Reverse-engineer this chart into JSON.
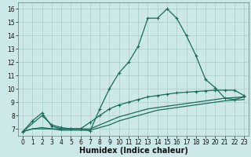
{
  "xlabel": "Humidex (Indice chaleur)",
  "background_color": "#cce8e8",
  "grid_color": "#aacccc",
  "line_color": "#1a6b5e",
  "xlim": [
    -0.5,
    23.5
  ],
  "ylim": [
    6.5,
    16.5
  ],
  "xticks": [
    0,
    1,
    2,
    3,
    4,
    5,
    6,
    7,
    8,
    9,
    10,
    11,
    12,
    13,
    14,
    15,
    16,
    17,
    18,
    19,
    20,
    21,
    22,
    23
  ],
  "yticks": [
    7,
    8,
    9,
    10,
    11,
    12,
    13,
    14,
    15,
    16
  ],
  "line1_x": [
    0,
    1,
    2,
    3,
    4,
    5,
    6,
    7,
    8,
    9,
    10,
    11,
    12,
    13,
    14,
    15,
    16,
    17,
    18,
    19,
    20,
    21,
    22,
    23
  ],
  "line1_y": [
    6.8,
    7.6,
    8.2,
    7.2,
    7.0,
    7.0,
    7.0,
    6.85,
    8.5,
    10.0,
    11.2,
    12.0,
    13.2,
    15.3,
    15.3,
    16.0,
    15.3,
    14.0,
    12.5,
    10.7,
    10.1,
    9.3,
    9.2,
    9.4
  ],
  "line2_x": [
    0,
    2,
    3,
    4,
    5,
    6,
    7,
    8,
    9,
    10,
    11,
    12,
    13,
    14,
    15,
    16,
    17,
    18,
    19,
    20,
    21,
    22,
    23
  ],
  "line2_y": [
    6.8,
    8.0,
    7.3,
    7.1,
    7.0,
    7.0,
    7.5,
    8.0,
    8.5,
    8.8,
    9.0,
    9.2,
    9.4,
    9.5,
    9.6,
    9.7,
    9.75,
    9.8,
    9.85,
    9.9,
    9.9,
    9.9,
    9.5
  ],
  "line3_x": [
    0,
    1,
    2,
    3,
    4,
    5,
    6,
    7,
    8,
    9,
    10,
    11,
    12,
    13,
    14,
    15,
    16,
    17,
    18,
    19,
    20,
    21,
    22,
    23
  ],
  "line3_y": [
    6.8,
    7.0,
    7.1,
    7.0,
    7.0,
    7.0,
    7.0,
    7.0,
    7.3,
    7.6,
    7.9,
    8.1,
    8.3,
    8.5,
    8.6,
    8.7,
    8.8,
    8.9,
    9.0,
    9.1,
    9.2,
    9.3,
    9.35,
    9.4
  ],
  "line4_x": [
    0,
    1,
    2,
    3,
    4,
    5,
    6,
    7,
    8,
    9,
    10,
    11,
    12,
    13,
    14,
    15,
    16,
    17,
    18,
    19,
    20,
    21,
    22,
    23
  ],
  "line4_y": [
    6.8,
    7.0,
    7.0,
    7.0,
    6.9,
    6.9,
    6.9,
    6.9,
    7.1,
    7.3,
    7.6,
    7.8,
    8.0,
    8.2,
    8.4,
    8.5,
    8.6,
    8.7,
    8.8,
    8.9,
    9.0,
    9.1,
    9.15,
    9.2
  ],
  "marker": "+",
  "markersize": 3,
  "markeredgewidth": 0.8,
  "linewidth": 0.9,
  "tick_fontsize": 5.5,
  "label_fontsize": 7.0,
  "label_fontweight": "bold"
}
